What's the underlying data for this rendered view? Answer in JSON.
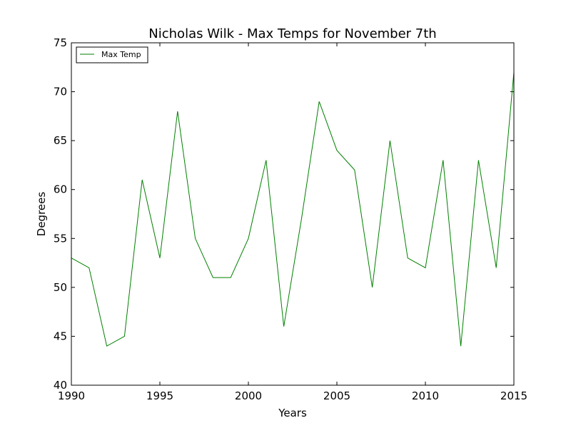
{
  "chart_data": {
    "type": "line",
    "title": "Nicholas Wilk - Max Temps for November 7th",
    "xlabel": "Years",
    "ylabel": "Degrees",
    "xlim": [
      1990,
      2015
    ],
    "ylim": [
      40,
      75
    ],
    "xticks": [
      "1990",
      "1995",
      "2000",
      "2005",
      "2010",
      "2015"
    ],
    "yticks": [
      "40",
      "45",
      "50",
      "55",
      "60",
      "65",
      "70",
      "75"
    ],
    "grid": false,
    "legend_position": "top-left",
    "x": [
      1990,
      1991,
      1992,
      1993,
      1994,
      1995,
      1996,
      1997,
      1998,
      1999,
      2000,
      2001,
      2002,
      2003,
      2004,
      2005,
      2006,
      2007,
      2008,
      2009,
      2010,
      2011,
      2012,
      2013,
      2014,
      2015
    ],
    "series": [
      {
        "name": "Max Temp",
        "color": "#008000",
        "values": [
          53,
          52,
          44,
          45,
          61,
          53,
          68,
          55,
          51,
          51,
          55,
          63,
          46,
          57,
          69,
          64,
          62,
          50,
          65,
          53,
          52,
          63,
          44,
          63,
          52,
          72
        ]
      }
    ]
  }
}
